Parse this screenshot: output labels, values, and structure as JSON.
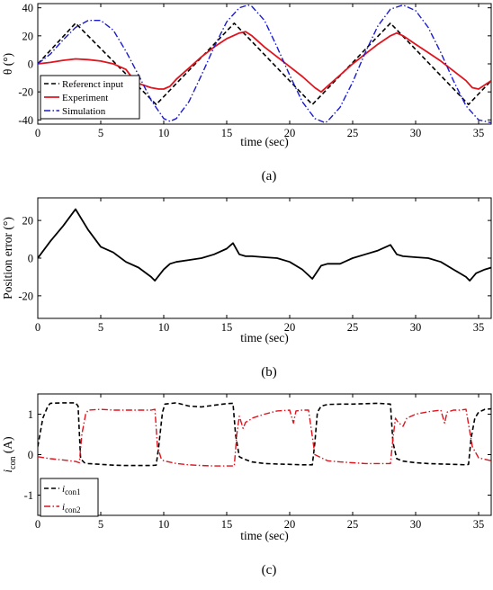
{
  "chart_data": [
    {
      "type": "line",
      "caption": "(a)",
      "xlabel": "time (sec)",
      "ylabel": "θ (°)",
      "xlim": [
        0,
        36
      ],
      "ylim": [
        -43,
        43
      ],
      "xticks": [
        0,
        5,
        10,
        15,
        20,
        25,
        30,
        35
      ],
      "yticks": [
        -40,
        -20,
        0,
        20,
        40
      ],
      "grid": false,
      "legend_position": "bottom-left",
      "series": [
        {
          "name": "Referenct input",
          "color": "#000000",
          "style": "dashed",
          "x": [
            0,
            3,
            9.4,
            15.6,
            21.8,
            28,
            34.2,
            36
          ],
          "y": [
            0,
            29,
            -29,
            29,
            -29,
            29,
            -29,
            -12
          ]
        },
        {
          "name": "Experiment",
          "color": "#e0141e",
          "style": "solid",
          "x": [
            0,
            1,
            2,
            3,
            4,
            5,
            6,
            7,
            7.5,
            8,
            9,
            9.6,
            10,
            10.5,
            11,
            12,
            13,
            14,
            15,
            16,
            16.5,
            17,
            18,
            19,
            20,
            21,
            22,
            22.5,
            23,
            24,
            25,
            26,
            27,
            28,
            28.5,
            29,
            30,
            31,
            32,
            33,
            34,
            34.5,
            35,
            36
          ],
          "y": [
            0,
            1,
            2.5,
            3.5,
            3,
            2,
            0,
            -4,
            -10,
            -14,
            -17,
            -18,
            -18,
            -16,
            -11,
            -3,
            5,
            12,
            18,
            22,
            23,
            20,
            12,
            5,
            -2,
            -9,
            -17,
            -20,
            -16,
            -8,
            0,
            7,
            14,
            20,
            22,
            20,
            14,
            8,
            2,
            -5,
            -12,
            -17,
            -18,
            -12
          ]
        },
        {
          "name": "Simulation",
          "color": "#1a1ad0",
          "style": "dashdot",
          "x": [
            0,
            1,
            2,
            3,
            4,
            5,
            6,
            7,
            8,
            9,
            10,
            10.5,
            11,
            12,
            13,
            14,
            15,
            16,
            16.7,
            17,
            18,
            19,
            20,
            21,
            22,
            22.8,
            23,
            24,
            25,
            26,
            27,
            28,
            29,
            30,
            31,
            32,
            33,
            34,
            35,
            36
          ],
          "y": [
            0,
            7,
            17,
            26,
            31,
            31,
            24,
            9,
            -8,
            -26,
            -39,
            -41,
            -39,
            -27,
            -8,
            12,
            30,
            40,
            42,
            41,
            31,
            12,
            -8,
            -27,
            -39,
            -42,
            -41,
            -31,
            -13,
            8,
            27,
            39,
            42,
            38,
            26,
            8,
            -12,
            -30,
            -40,
            -42
          ]
        }
      ]
    },
    {
      "type": "line",
      "caption": "(b)",
      "xlabel": "time (sec)",
      "ylabel": "Position error (°)",
      "xlim": [
        0,
        36
      ],
      "ylim": [
        -32,
        32
      ],
      "xticks": [
        0,
        5,
        10,
        15,
        20,
        25,
        30,
        35
      ],
      "yticks": [
        -20,
        0,
        20
      ],
      "grid": false,
      "series": [
        {
          "color": "#000000",
          "style": "solid",
          "x": [
            0,
            1,
            2,
            3,
            4,
            5,
            6,
            7,
            8,
            9,
            9.3,
            10,
            10.5,
            11,
            12,
            13,
            14,
            15,
            15.5,
            16,
            16.5,
            17,
            18,
            19,
            20,
            21,
            21.8,
            22.5,
            23,
            24,
            25,
            26,
            27,
            28,
            28.5,
            29,
            30,
            31,
            32,
            33,
            34,
            34.3,
            34.8,
            35.5,
            36
          ],
          "y": [
            0,
            9,
            17,
            26,
            15,
            6,
            3,
            -2,
            -5,
            -10,
            -12,
            -6,
            -3,
            -2,
            -1,
            0,
            2,
            5,
            8,
            2,
            1,
            1,
            0.5,
            0,
            -2,
            -6,
            -11,
            -4,
            -3,
            -3,
            0,
            2,
            4,
            7,
            2,
            1,
            0.5,
            0,
            -2,
            -6,
            -10,
            -12,
            -8,
            -6,
            -5
          ]
        }
      ]
    },
    {
      "type": "line",
      "caption": "(c)",
      "xlabel": "time (sec)",
      "ylabel": "i_con (A)",
      "ylabel_main": "i",
      "ylabel_sub": "con",
      "ylabel_unit": " (A)",
      "xlim": [
        0,
        36
      ],
      "ylim": [
        -1.5,
        1.5
      ],
      "xticks": [
        0,
        5,
        10,
        15,
        20,
        25,
        30,
        35
      ],
      "yticks": [
        -1,
        0,
        1
      ],
      "grid": false,
      "legend_position": "bottom-left",
      "series": [
        {
          "name_main": "i",
          "name_sub": "con1",
          "color": "#000000",
          "style": "dashed",
          "x": [
            0,
            0.4,
            0.8,
            1,
            2,
            3,
            3.2,
            3.4,
            3.7,
            4,
            5,
            6,
            7,
            8,
            9,
            9.4,
            9.6,
            9.9,
            10.1,
            11,
            12,
            13,
            14,
            15,
            15.5,
            15.7,
            16,
            16.3,
            17,
            18,
            19,
            20,
            21,
            21.8,
            22,
            22.2,
            22.5,
            23,
            24,
            25,
            26,
            27,
            28,
            28.2,
            28.5,
            29,
            30,
            31,
            32,
            33,
            34,
            34.2,
            34.4,
            34.7,
            35,
            35.5,
            36
          ],
          "y": [
            0.2,
            0.9,
            1.2,
            1.27,
            1.28,
            1.28,
            1.2,
            -0.1,
            -0.2,
            -0.22,
            -0.24,
            -0.26,
            -0.27,
            -0.27,
            -0.27,
            -0.26,
            0.2,
            1.05,
            1.25,
            1.28,
            1.2,
            1.18,
            1.22,
            1.26,
            1.27,
            0.5,
            -0.05,
            -0.1,
            -0.18,
            -0.22,
            -0.23,
            -0.24,
            -0.25,
            -0.25,
            0.3,
            1.05,
            1.2,
            1.24,
            1.25,
            1.25,
            1.26,
            1.27,
            1.25,
            0.3,
            -0.1,
            -0.16,
            -0.2,
            -0.22,
            -0.23,
            -0.24,
            -0.25,
            -0.24,
            0.4,
            0.9,
            1.05,
            1.12,
            1.13
          ]
        },
        {
          "name_main": "i",
          "name_sub": "con2",
          "color": "#e0141e",
          "style": "dashdot",
          "x": [
            0,
            1,
            2,
            3,
            3.3,
            3.5,
            3.8,
            4,
            5,
            6,
            7,
            8,
            9,
            9.3,
            9.5,
            9.8,
            10,
            11,
            12,
            13,
            14,
            15,
            15.6,
            15.8,
            16,
            16.3,
            16.5,
            16.8,
            17,
            18,
            19,
            20,
            20.3,
            20.5,
            21,
            21.5,
            22,
            23,
            24,
            25,
            26,
            27,
            28,
            28.2,
            28.4,
            28.6,
            29,
            29.3,
            30,
            31,
            32,
            32.3,
            32.5,
            33,
            33.5,
            34,
            34.5,
            35,
            36
          ],
          "y": [
            -0.05,
            -0.1,
            -0.13,
            -0.17,
            -0.2,
            0.5,
            1.0,
            1.1,
            1.12,
            1.1,
            1.1,
            1.1,
            1.1,
            1.12,
            0.2,
            -0.1,
            -0.15,
            -0.22,
            -0.25,
            -0.27,
            -0.28,
            -0.28,
            -0.28,
            0.5,
            0.95,
            0.65,
            0.8,
            0.85,
            0.9,
            1.0,
            1.08,
            1.1,
            0.78,
            1.08,
            1.1,
            1.1,
            0.0,
            -0.15,
            -0.18,
            -0.2,
            -0.22,
            -0.22,
            -0.22,
            0.4,
            0.9,
            0.8,
            0.7,
            0.9,
            1.0,
            1.06,
            1.1,
            0.78,
            1.05,
            1.1,
            1.1,
            1.12,
            0.2,
            -0.08,
            -0.15
          ]
        }
      ]
    }
  ]
}
